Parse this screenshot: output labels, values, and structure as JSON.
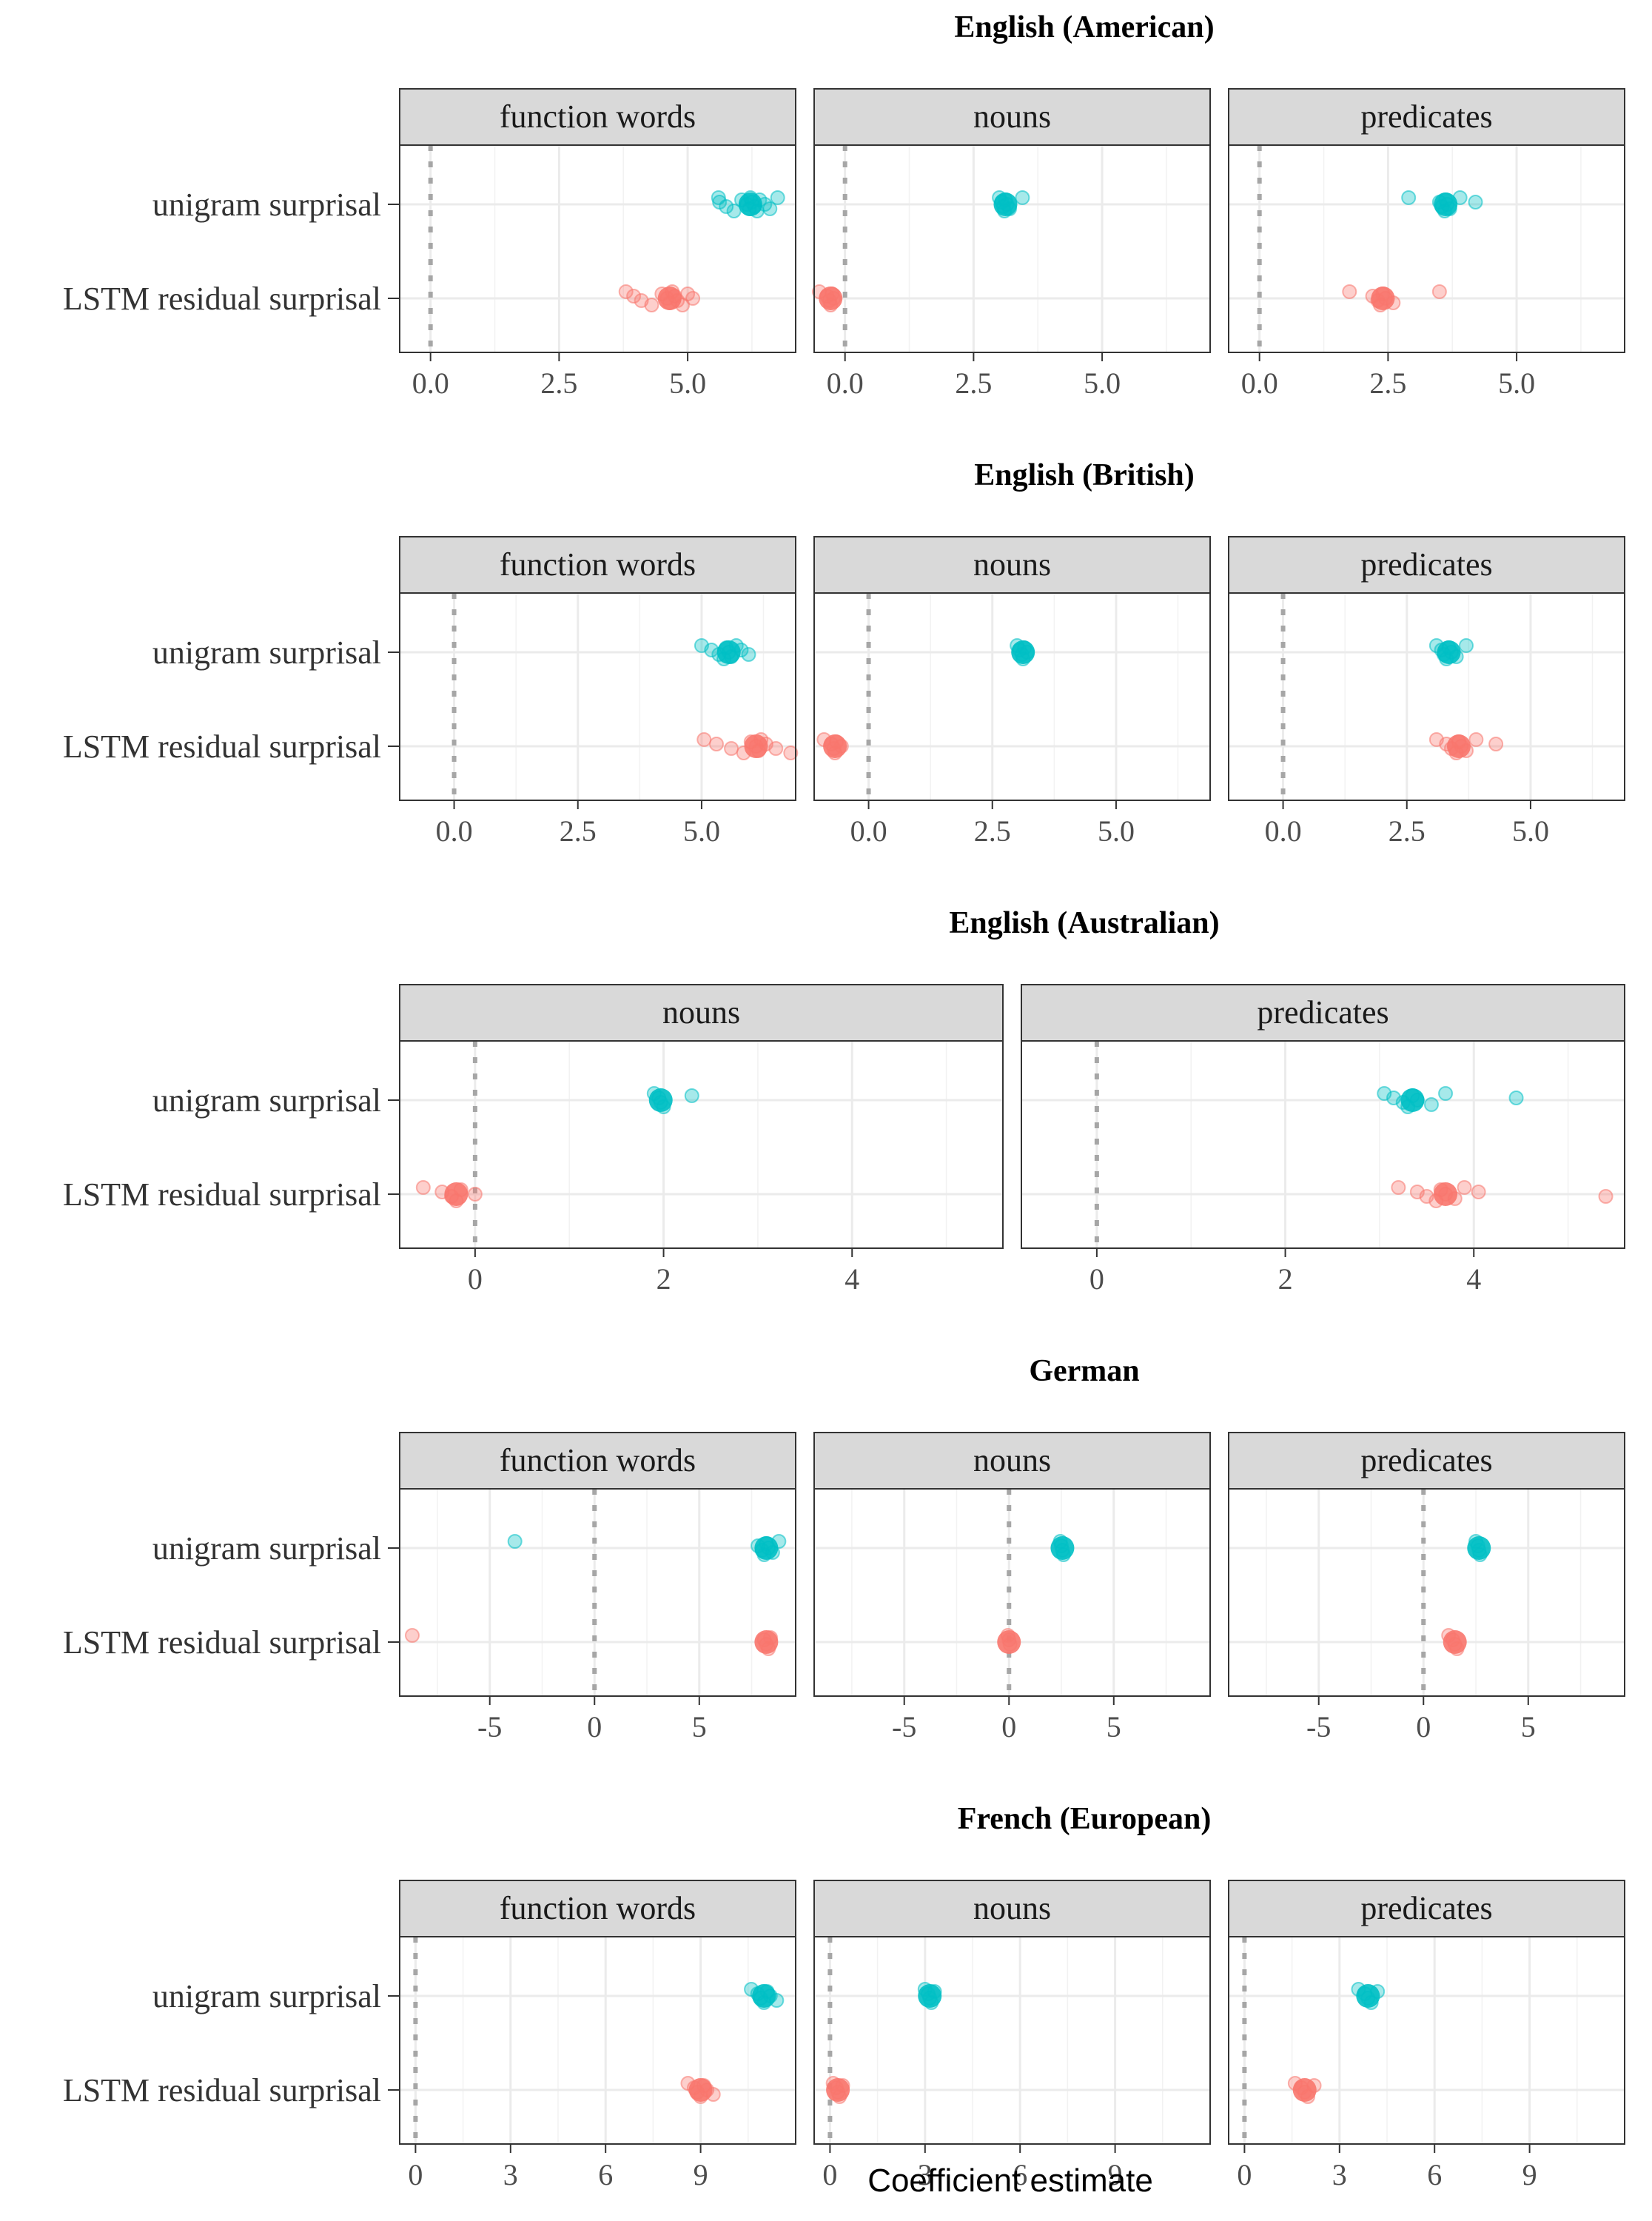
{
  "colors": {
    "unigram": "#00BFC4",
    "lstm": "#F8766D",
    "strip_fill": "#D9D9D9",
    "grid": "#EBEBEB",
    "zero_line": "#A6A6A6"
  },
  "chart_data": {
    "type": "scatter",
    "xlabel": "Coefficient estimate",
    "row_labels": [
      "unigram surprisal",
      "LSTM residual surprisal"
    ],
    "grid": true,
    "zero_reference_line": true,
    "languages": [
      {
        "title": "English (American)",
        "xlim": [
          -0.6,
          7.1
        ],
        "xticks": [
          0.0,
          2.5,
          5.0
        ],
        "xtick_labels": [
          "0.0",
          "2.5",
          "5.0"
        ],
        "panels": [
          {
            "name": "function words",
            "series": [
              {
                "row": "unigram surprisal",
                "values": [
                  5.6,
                  5.62,
                  5.75,
                  5.9,
                  6.05,
                  6.15,
                  6.2,
                  6.22,
                  6.25,
                  6.3,
                  6.35,
                  6.4,
                  6.5,
                  6.6,
                  6.75
                ]
              },
              {
                "row": "LSTM residual surprisal",
                "values": [
                  3.8,
                  3.95,
                  4.1,
                  4.3,
                  4.5,
                  4.6,
                  4.65,
                  4.7,
                  4.75,
                  4.8,
                  4.9,
                  5.0,
                  5.1
                ]
              }
            ]
          },
          {
            "name": "nouns",
            "series": [
              {
                "row": "unigram surprisal",
                "values": [
                  3.0,
                  3.05,
                  3.08,
                  3.1,
                  3.12,
                  3.15,
                  3.2,
                  3.45
                ]
              },
              {
                "row": "LSTM residual surprisal",
                "values": [
                  -0.5,
                  -0.35,
                  -0.3,
                  -0.28,
                  -0.25,
                  -0.22
                ]
              }
            ]
          },
          {
            "name": "predicates",
            "series": [
              {
                "row": "unigram surprisal",
                "values": [
                  2.9,
                  3.5,
                  3.55,
                  3.6,
                  3.62,
                  3.65,
                  3.7,
                  3.9,
                  4.2
                ]
              },
              {
                "row": "LSTM residual surprisal",
                "values": [
                  1.75,
                  2.2,
                  2.3,
                  2.35,
                  2.4,
                  2.45,
                  2.6,
                  3.5
                ]
              }
            ]
          }
        ]
      },
      {
        "title": "English (British)",
        "xlim": [
          -1.1,
          6.9
        ],
        "xticks": [
          0.0,
          2.5,
          5.0
        ],
        "xtick_labels": [
          "0.0",
          "2.5",
          "5.0"
        ],
        "panels": [
          {
            "name": "function words",
            "series": [
              {
                "row": "unigram surprisal",
                "values": [
                  5.0,
                  5.2,
                  5.35,
                  5.45,
                  5.5,
                  5.55,
                  5.6,
                  5.7,
                  5.8,
                  5.95
                ]
              },
              {
                "row": "LSTM residual surprisal",
                "values": [
                  5.05,
                  5.3,
                  5.6,
                  5.85,
                  6.0,
                  6.1,
                  6.15,
                  6.2,
                  6.3,
                  6.5,
                  6.8
                ]
              }
            ]
          },
          {
            "name": "nouns",
            "series": [
              {
                "row": "unigram surprisal",
                "values": [
                  3.0,
                  3.05,
                  3.1,
                  3.12,
                  3.15,
                  3.2
                ]
              },
              {
                "row": "LSTM residual surprisal",
                "values": [
                  -0.9,
                  -0.75,
                  -0.7,
                  -0.68,
                  -0.65,
                  -0.55
                ]
              }
            ]
          },
          {
            "name": "predicates",
            "series": [
              {
                "row": "unigram surprisal",
                "values": [
                  3.1,
                  3.2,
                  3.25,
                  3.3,
                  3.35,
                  3.4,
                  3.5,
                  3.7
                ]
              },
              {
                "row": "LSTM residual surprisal",
                "values": [
                  3.1,
                  3.3,
                  3.4,
                  3.5,
                  3.55,
                  3.6,
                  3.7,
                  3.9,
                  4.3
                ]
              }
            ]
          }
        ]
      },
      {
        "title": "English (Australian)",
        "xlim": [
          -0.8,
          5.6
        ],
        "xticks": [
          0,
          2,
          4
        ],
        "xtick_labels": [
          "0",
          "2",
          "4"
        ],
        "panels": [
          {
            "name": "nouns",
            "series": [
              {
                "row": "unigram surprisal",
                "values": [
                  1.9,
                  1.95,
                  1.97,
                  2.0,
                  2.3
                ]
              },
              {
                "row": "LSTM residual surprisal",
                "values": [
                  -0.55,
                  -0.35,
                  -0.25,
                  -0.2,
                  -0.15,
                  0.0
                ]
              }
            ]
          },
          {
            "name": "predicates",
            "series": [
              {
                "row": "unigram surprisal",
                "values": [
                  3.05,
                  3.15,
                  3.25,
                  3.3,
                  3.35,
                  3.4,
                  3.55,
                  3.7,
                  4.45
                ]
              },
              {
                "row": "LSTM residual surprisal",
                "values": [
                  3.2,
                  3.4,
                  3.5,
                  3.6,
                  3.65,
                  3.7,
                  3.8,
                  3.9,
                  4.05,
                  5.4
                ]
              }
            ]
          }
        ]
      },
      {
        "title": "German",
        "xlim": [
          -9.3,
          9.6
        ],
        "xticks": [
          -5,
          0,
          5
        ],
        "xtick_labels": [
          "-5",
          "0",
          "5"
        ],
        "panels": [
          {
            "name": "function words",
            "series": [
              {
                "row": "unigram surprisal",
                "values": [
                  -3.8,
                  7.8,
                  8.0,
                  8.1,
                  8.2,
                  8.3,
                  8.5,
                  8.8
                ]
              },
              {
                "row": "LSTM residual surprisal",
                "values": [
                  -8.7,
                  8.1,
                  8.2,
                  8.3,
                  8.4
                ]
              }
            ]
          },
          {
            "name": "nouns",
            "series": [
              {
                "row": "unigram surprisal",
                "values": [
                  2.45,
                  2.5,
                  2.55,
                  2.6
                ]
              },
              {
                "row": "LSTM residual surprisal",
                "values": [
                  -0.05,
                  0.0,
                  0.05
                ]
              }
            ]
          },
          {
            "name": "predicates",
            "series": [
              {
                "row": "unigram surprisal",
                "values": [
                  2.5,
                  2.6,
                  2.65,
                  2.7
                ]
              },
              {
                "row": "LSTM residual surprisal",
                "values": [
                  1.2,
                  1.4,
                  1.5,
                  1.6
                ]
              }
            ]
          }
        ]
      },
      {
        "title": "French (European)",
        "xlim": [
          -0.5,
          12.0
        ],
        "xticks": [
          0,
          3,
          6,
          9
        ],
        "xtick_labels": [
          "0",
          "3",
          "6",
          "9"
        ],
        "panels": [
          {
            "name": "function words",
            "series": [
              {
                "row": "unigram surprisal",
                "values": [
                  10.6,
                  10.8,
                  10.9,
                  11.0,
                  11.1,
                  11.2,
                  11.4
                ]
              },
              {
                "row": "LSTM residual surprisal",
                "values": [
                  8.6,
                  8.8,
                  8.9,
                  9.0,
                  9.1,
                  9.2,
                  9.4
                ]
              }
            ]
          },
          {
            "name": "nouns",
            "series": [
              {
                "row": "unigram surprisal",
                "values": [
                  3.0,
                  3.1,
                  3.15,
                  3.2,
                  3.3
                ]
              },
              {
                "row": "LSTM residual surprisal",
                "values": [
                  0.1,
                  0.2,
                  0.25,
                  0.3,
                  0.4
                ]
              }
            ]
          },
          {
            "name": "predicates",
            "series": [
              {
                "row": "unigram surprisal",
                "values": [
                  3.6,
                  3.8,
                  3.9,
                  4.0,
                  4.2
                ]
              },
              {
                "row": "LSTM residual surprisal",
                "values": [
                  1.6,
                  1.8,
                  1.9,
                  2.0,
                  2.2
                ]
              }
            ]
          }
        ]
      }
    ]
  }
}
